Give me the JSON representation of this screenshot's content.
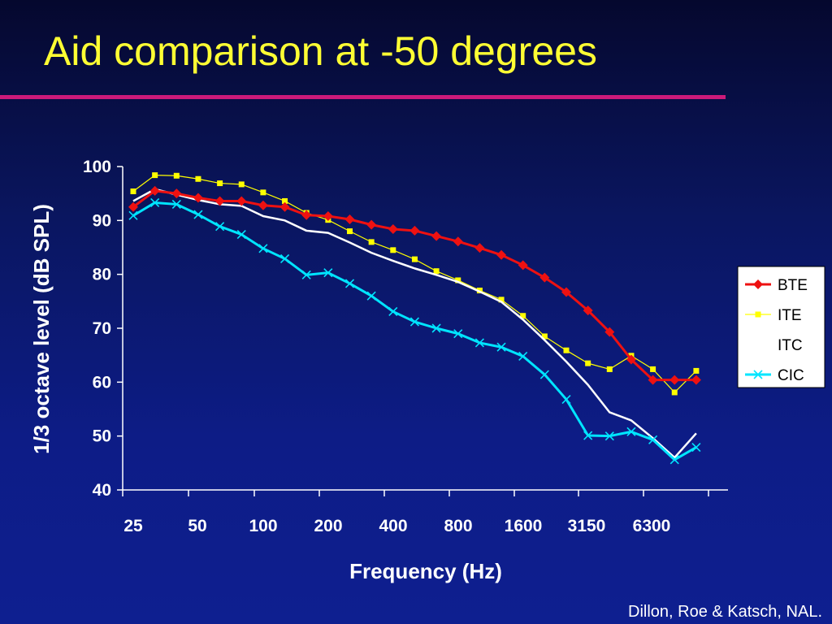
{
  "slide": {
    "title": "Aid comparison at -50 degrees",
    "credit": "Dillon, Roe & Katsch, NAL.",
    "title_color": "#ffff33",
    "rule_color": "#cc1a7a"
  },
  "chart_data": {
    "type": "line",
    "title": "",
    "xlabel": "Frequency (Hz)",
    "ylabel": "1/3 octave level (dB SPL)",
    "ylim": [
      40,
      100
    ],
    "yticks": [
      40,
      50,
      60,
      70,
      80,
      90,
      100
    ],
    "x_tick_labels": [
      "25",
      "50",
      "100",
      "200",
      "400",
      "800",
      "1600",
      "3150",
      "6300"
    ],
    "x_scale": "log (1/3-octave bands)",
    "grid": false,
    "legend_position": "right",
    "series": [
      {
        "name": "BTE",
        "color": "#ee1111",
        "marker": "diamond",
        "values": [
          92.5,
          95.5,
          95.0,
          94.2,
          93.6,
          93.6,
          92.8,
          92.5,
          91.0,
          90.8,
          90.2,
          89.2,
          88.4,
          88.1,
          87.1,
          86.1,
          84.9,
          83.6,
          81.7,
          79.4,
          76.7,
          73.3,
          69.3,
          64.2,
          60.4,
          60.4,
          60.4
        ]
      },
      {
        "name": "ITE",
        "color": "#ffff00",
        "marker": "square",
        "values": [
          95.4,
          98.4,
          98.3,
          97.7,
          96.9,
          96.7,
          95.2,
          93.6,
          91.4,
          90.1,
          88.0,
          86.0,
          84.5,
          82.8,
          80.6,
          78.9,
          77.0,
          75.3,
          72.3,
          68.5,
          65.9,
          63.5,
          62.4,
          64.9,
          62.4,
          58.1,
          62.1
        ]
      },
      {
        "name": "ITC",
        "color": "#ffffff",
        "marker": "none",
        "values": [
          93.6,
          95.8,
          94.8,
          93.8,
          93.0,
          92.7,
          90.8,
          90.0,
          88.1,
          87.7,
          85.9,
          84.0,
          82.5,
          81.1,
          79.9,
          78.6,
          76.8,
          74.9,
          71.6,
          67.8,
          63.8,
          59.5,
          54.4,
          52.9,
          49.6,
          46.0,
          50.5
        ]
      },
      {
        "name": "CIC",
        "color": "#00e5ff",
        "marker": "x",
        "values": [
          90.9,
          93.3,
          93.0,
          91.1,
          88.9,
          87.4,
          84.8,
          82.9,
          79.9,
          80.3,
          78.3,
          76.0,
          73.1,
          71.2,
          70.0,
          69.0,
          67.3,
          66.5,
          64.8,
          61.4,
          56.8,
          50.1,
          50.0,
          50.8,
          49.3,
          45.6,
          47.9
        ]
      }
    ]
  }
}
